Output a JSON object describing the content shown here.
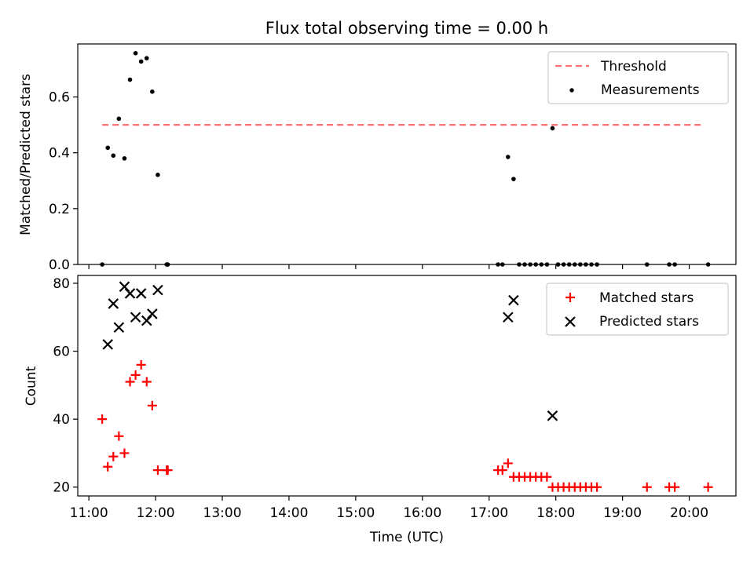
{
  "figure": {
    "title": "Flux total observing time = 0.00 h",
    "xlabel": "Time (UTC)"
  },
  "colors": {
    "threshold": "#ff7070",
    "measurements": "#000000",
    "matched": "#ff0000",
    "predicted": "#000000"
  },
  "chart_data": [
    {
      "type": "scatter",
      "panel": "top",
      "ylabel": "Matched/Predicted stars",
      "x_label_format": "HH:MM",
      "xlim": [
        "10:50",
        "20:42"
      ],
      "ylim": [
        0,
        0.79
      ],
      "yticks": [
        0.0,
        0.2,
        0.4,
        0.6
      ],
      "ytick_labels": [
        "0.0",
        "0.2",
        "0.4",
        "0.6"
      ],
      "legend_position": "top-right",
      "series": [
        {
          "name": "Threshold",
          "style": "dashed-line",
          "x": [
            "11:12",
            "20:12"
          ],
          "y": [
            0.5,
            0.5
          ]
        },
        {
          "name": "Measurements",
          "style": "dot",
          "x": [
            "11:12",
            "11:17",
            "11:22",
            "11:27",
            "11:32",
            "11:37",
            "11:42",
            "11:47",
            "11:52",
            "11:57",
            "12:02",
            "12:10",
            "12:11",
            "17:08",
            "17:12",
            "17:17",
            "17:22",
            "17:27",
            "17:32",
            "17:37",
            "17:42",
            "17:47",
            "17:52",
            "17:57",
            "18:02",
            "18:07",
            "18:12",
            "18:17",
            "18:22",
            "18:27",
            "18:32",
            "18:37",
            "19:22",
            "19:42",
            "19:47",
            "20:17"
          ],
          "y": [
            0.0,
            0.418,
            0.39,
            0.522,
            0.38,
            0.662,
            0.757,
            0.727,
            0.739,
            0.619,
            0.321,
            0.0,
            0.0,
            0.0,
            0.0,
            0.385,
            0.306,
            0.0,
            0.0,
            0.0,
            0.0,
            0.0,
            0.0,
            0.488,
            0.0,
            0.0,
            0.0,
            0.0,
            0.0,
            0.0,
            0.0,
            0.0,
            0.0,
            0.0,
            0.0,
            0.0
          ]
        }
      ]
    },
    {
      "type": "scatter",
      "panel": "bottom",
      "ylabel": "Count",
      "x_label_format": "HH:MM",
      "xlim": [
        "10:50",
        "20:42"
      ],
      "ylim": [
        17.4,
        82.3
      ],
      "yticks": [
        20,
        40,
        60,
        80
      ],
      "xticks": [
        "11:00",
        "12:00",
        "13:00",
        "14:00",
        "15:00",
        "16:00",
        "17:00",
        "18:00",
        "19:00",
        "20:00"
      ],
      "legend_position": "top-right",
      "series": [
        {
          "name": "Matched stars",
          "style": "plus",
          "x": [
            "11:12",
            "11:17",
            "11:22",
            "11:27",
            "11:32",
            "11:37",
            "11:42",
            "11:47",
            "11:52",
            "11:57",
            "12:02",
            "12:10",
            "12:11",
            "17:08",
            "17:12",
            "17:17",
            "17:22",
            "17:27",
            "17:32",
            "17:37",
            "17:42",
            "17:47",
            "17:52",
            "17:57",
            "18:02",
            "18:07",
            "18:12",
            "18:17",
            "18:22",
            "18:27",
            "18:32",
            "18:37",
            "19:22",
            "19:42",
            "19:47",
            "20:17"
          ],
          "y": [
            40,
            26,
            29,
            35,
            30,
            51,
            53,
            56,
            51,
            44,
            25,
            25,
            25,
            25,
            25,
            27,
            23,
            23,
            23,
            23,
            23,
            23,
            23,
            20,
            20,
            20,
            20,
            20,
            20,
            20,
            20,
            20,
            20,
            20,
            20,
            20
          ]
        },
        {
          "name": "Predicted stars",
          "style": "x",
          "x": [
            "11:17",
            "11:22",
            "11:27",
            "11:32",
            "11:37",
            "11:42",
            "11:47",
            "11:52",
            "11:57",
            "12:02",
            "17:17",
            "17:22",
            "17:57"
          ],
          "y": [
            62,
            74,
            67,
            79,
            77,
            70,
            77,
            69,
            71,
            78,
            70,
            75,
            41
          ]
        }
      ]
    }
  ]
}
